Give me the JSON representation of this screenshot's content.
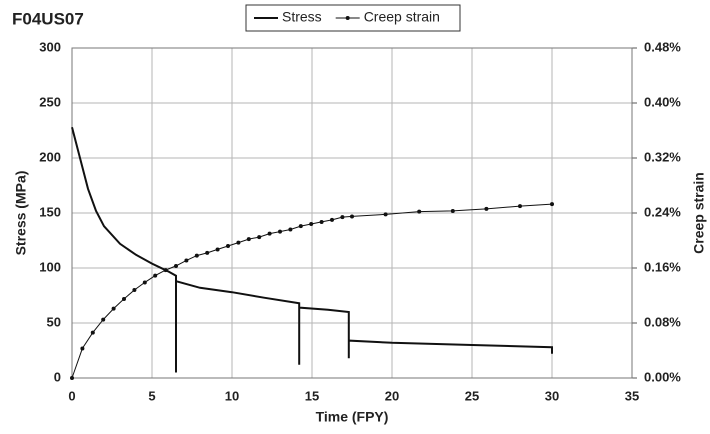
{
  "chart_data": {
    "type": "line",
    "title": "F04US07",
    "xlabel": "Time (FPY)",
    "ylabel": "Stress (MPa)",
    "y2label": "Creep strain",
    "xlim": [
      0,
      35
    ],
    "xticks": [
      0,
      5,
      10,
      15,
      20,
      25,
      30,
      35
    ],
    "ylim": [
      0,
      300
    ],
    "yticks": [
      0,
      50,
      100,
      150,
      200,
      250,
      300
    ],
    "y2lim": [
      0,
      0.48
    ],
    "y2ticks": [
      {
        "value": 0,
        "label": "0.00%"
      },
      {
        "value": 0.08,
        "label": "0.08%"
      },
      {
        "value": 0.16,
        "label": "0.16%"
      },
      {
        "value": 0.24,
        "label": "0.24%"
      },
      {
        "value": 0.32,
        "label": "0.32%"
      },
      {
        "value": 0.4,
        "label": "0.40%"
      },
      {
        "value": 0.48,
        "label": "0.48%"
      }
    ],
    "grid": true,
    "legend": "top",
    "series": [
      {
        "name": "Stress",
        "color": "#111111",
        "markers": false,
        "x": [
          0,
          0.5,
          1,
          1.5,
          2,
          3,
          4,
          5,
          6,
          6.5,
          6.5,
          6.5,
          8,
          10,
          12,
          14.2,
          14.2,
          14.2,
          16,
          17.3,
          17.3,
          17.3,
          20,
          25,
          30,
          30
        ],
        "values": [
          228,
          200,
          172,
          152,
          138,
          122,
          112,
          104,
          97,
          93,
          5,
          88,
          82,
          78,
          73,
          68,
          12,
          64,
          62,
          60,
          18,
          34,
          32,
          30,
          28,
          22
        ]
      },
      {
        "name": "Creep strain",
        "color": "#111111",
        "axis": "y2",
        "markers": true,
        "x": [
          0,
          0.65,
          1.3,
          1.95,
          2.6,
          3.25,
          3.9,
          4.55,
          5.2,
          5.85,
          6.5,
          7.15,
          7.8,
          8.45,
          9.1,
          9.75,
          10.4,
          11.05,
          11.7,
          12.35,
          13,
          13.65,
          14.3,
          14.95,
          15.6,
          16.25,
          16.9,
          17.5,
          19.6,
          21.7,
          23.8,
          25.9,
          28,
          30
        ],
        "values": [
          0,
          0.043,
          0.066,
          0.085,
          0.101,
          0.115,
          0.128,
          0.139,
          0.149,
          0.157,
          0.163,
          0.171,
          0.178,
          0.182,
          0.187,
          0.192,
          0.197,
          0.202,
          0.205,
          0.21,
          0.213,
          0.216,
          0.221,
          0.224,
          0.227,
          0.23,
          0.234,
          0.235,
          0.238,
          0.242,
          0.243,
          0.246,
          0.25,
          0.253
        ]
      }
    ]
  }
}
